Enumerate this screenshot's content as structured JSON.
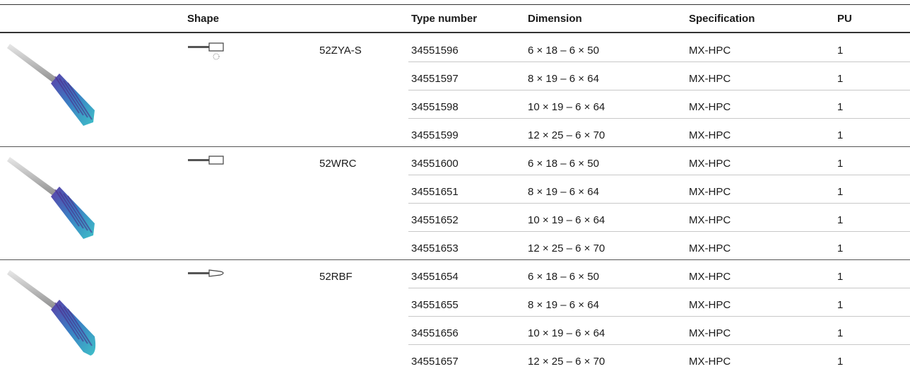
{
  "table": {
    "headers": [
      "Shape",
      "Type number",
      "Dimension",
      "Specification",
      "PU"
    ],
    "groups": [
      {
        "shape": "52ZYA-S",
        "rows": [
          [
            "34551596",
            "6 × 18 – 6 × 50",
            "MX-HPC",
            "1"
          ],
          [
            "34551597",
            "8 × 19 – 6 × 64",
            "MX-HPC",
            "1"
          ],
          [
            "34551598",
            "10 × 19 – 6 × 64",
            "MX-HPC",
            "1"
          ],
          [
            "34551599",
            "12 × 25 – 6 × 70",
            "MX-HPC",
            "1"
          ]
        ]
      },
      {
        "shape": "52WRC",
        "rows": [
          [
            "34551600",
            "6 × 18 – 6 × 50",
            "MX-HPC",
            "1"
          ],
          [
            "34551651",
            "8 × 19 – 6 × 64",
            "MX-HPC",
            "1"
          ],
          [
            "34551652",
            "10 × 19 – 6 × 64",
            "MX-HPC",
            "1"
          ],
          [
            "34551653",
            "12 × 25 – 6 × 70",
            "MX-HPC",
            "1"
          ]
        ]
      },
      {
        "shape": "52RBF",
        "rows": [
          [
            "34551654",
            "6 × 18 – 6 × 50",
            "MX-HPC",
            "1"
          ],
          [
            "34551655",
            "8 × 19 – 6 × 64",
            "MX-HPC",
            "1"
          ],
          [
            "34551656",
            "10 × 19 – 6 × 64",
            "MX-HPC",
            "1"
          ],
          [
            "34551657",
            "12 × 25 – 6 × 70",
            "MX-HPC",
            "1"
          ]
        ]
      }
    ]
  }
}
